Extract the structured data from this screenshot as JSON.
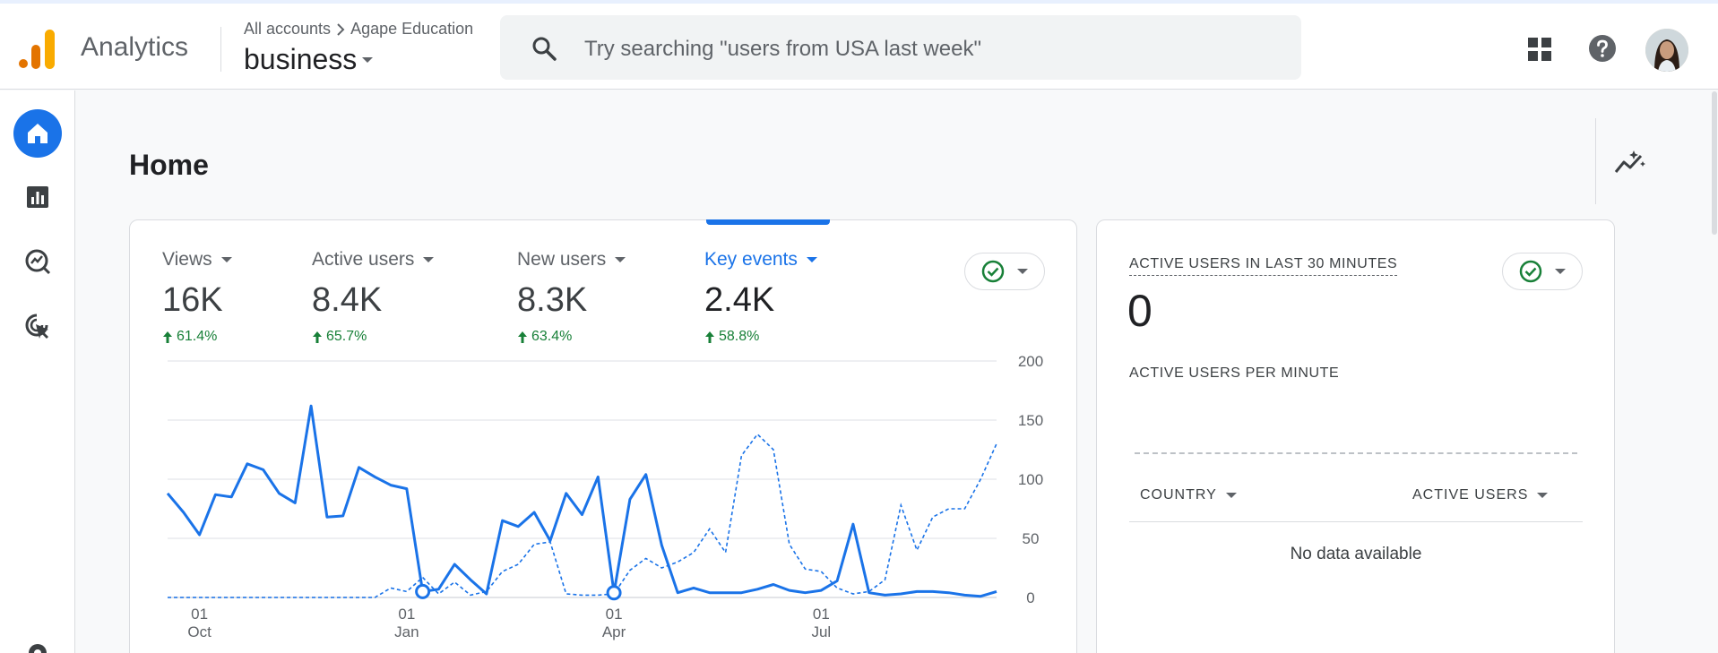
{
  "app": {
    "name": "Analytics",
    "breadcrumb": {
      "all_accounts": "All accounts",
      "account": "Agape Education"
    },
    "property": "business"
  },
  "search": {
    "placeholder": "Try searching \"users from USA last week\""
  },
  "page": {
    "title": "Home"
  },
  "metrics": [
    {
      "label": "Views",
      "value": "16K",
      "change": "61.4%"
    },
    {
      "label": "Active users",
      "value": "8.4K",
      "change": "65.7%"
    },
    {
      "label": "New users",
      "value": "8.3K",
      "change": "63.4%"
    },
    {
      "label": "Key events",
      "value": "2.4K",
      "change": "58.8%",
      "active": true
    }
  ],
  "realtime": {
    "title": "ACTIVE USERS IN LAST 30 MINUTES",
    "count": "0",
    "per_minute_label": "ACTIVE USERS PER MINUTE",
    "col_country": "COUNTRY",
    "col_active_users": "ACTIVE USERS",
    "empty": "No data available"
  },
  "colors": {
    "accent": "#1a73e8",
    "positive": "#188038",
    "logo_orange": "#f9ab00",
    "logo_dark_orange": "#e37400"
  },
  "chart_data": {
    "type": "line",
    "y_ticks": [
      "200",
      "150",
      "100",
      "50",
      "0"
    ],
    "ylim": [
      0,
      200
    ],
    "x_ticks": [
      {
        "day": "01",
        "month": "Oct",
        "index": 2
      },
      {
        "day": "01",
        "month": "Jan",
        "index": 15
      },
      {
        "day": "01",
        "month": "Apr",
        "index": 28
      },
      {
        "day": "01",
        "month": "Jul",
        "index": 41
      }
    ],
    "series": [
      {
        "style": "solid",
        "values": [
          88,
          72,
          53,
          87,
          85,
          113,
          108,
          88,
          80,
          162,
          68,
          69,
          110,
          102,
          95,
          92,
          5,
          7,
          28,
          15,
          3,
          65,
          60,
          72,
          48,
          88,
          70,
          102,
          4,
          83,
          104,
          44,
          4,
          8,
          4,
          4,
          4,
          7,
          11,
          6,
          4,
          6,
          14,
          62,
          4,
          2,
          3,
          5,
          5,
          4,
          2,
          1,
          5
        ]
      },
      {
        "style": "dashed",
        "values": [
          0,
          0,
          0,
          0,
          0,
          0,
          0,
          0,
          0,
          0,
          0,
          0,
          0,
          0,
          8,
          5,
          17,
          3,
          13,
          2,
          5,
          22,
          28,
          45,
          47,
          3,
          2,
          2,
          3,
          23,
          33,
          25,
          30,
          38,
          58,
          38,
          120,
          138,
          125,
          45,
          24,
          22,
          8,
          3,
          5,
          15,
          78,
          40,
          68,
          75,
          75,
          100,
          130
        ]
      }
    ]
  }
}
